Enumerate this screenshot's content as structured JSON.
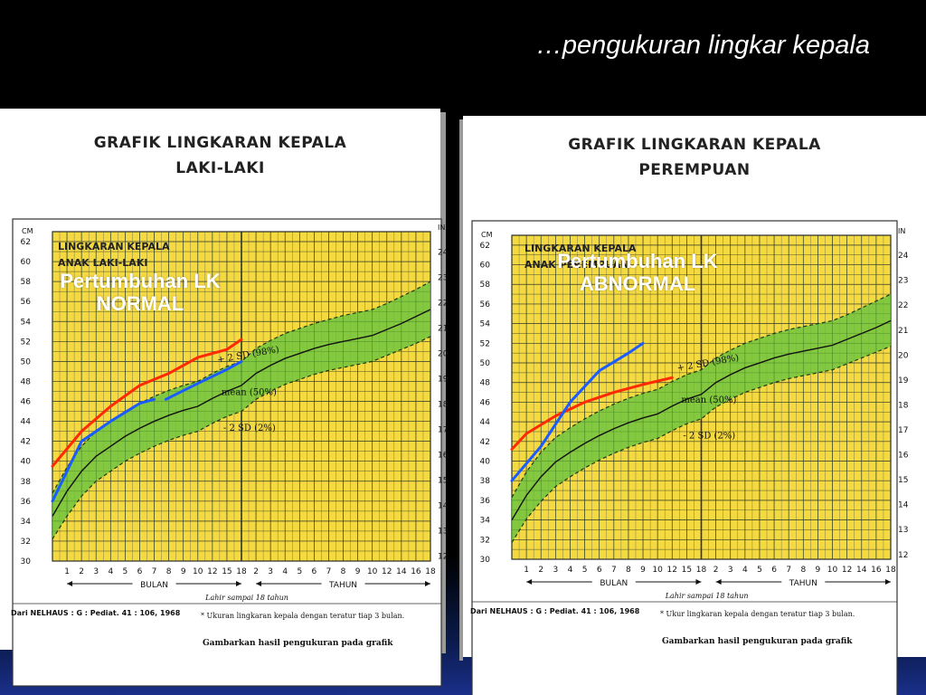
{
  "slide": {
    "title": "…pengukuran lingkar kepala"
  },
  "chart_data": [
    {
      "type": "line",
      "title": "GRAFIK LINGKARAN KEPALA",
      "subtitle": "LAKI-LAKI",
      "inner_title_1": "LINGKARAN KEPALA",
      "inner_title_2": "ANAK LAKI-LAKI",
      "overlay": "Pertumbuhan LK NORMAL",
      "overlay_lines": [
        "Pertumbuhan LK",
        "NORMAL"
      ],
      "left_axis_unit": "CM",
      "right_axis_unit": "IN",
      "cm_ticks": [
        30,
        32,
        34,
        36,
        38,
        40,
        42,
        44,
        46,
        48,
        50,
        52,
        54,
        56,
        58,
        60,
        62
      ],
      "in_ticks": [
        12,
        13,
        14,
        15,
        16,
        17,
        18,
        19,
        20,
        21,
        22,
        23,
        24
      ],
      "month_ticks": [
        "1",
        "2",
        "3",
        "4",
        "5",
        "6",
        "7",
        "8",
        "9",
        "10",
        "12",
        "15",
        "18"
      ],
      "year_ticks": [
        "2",
        "3",
        "4",
        "5",
        "6",
        "7",
        "8",
        "9",
        "10",
        "12",
        "14",
        "16",
        "18"
      ],
      "bulan_label": "BULAN",
      "tahun_label": "TAHUN",
      "range_note": "Lahir sampai 18 tahun",
      "source": "Dari NELHAUS : G : Pediat. 41 : 106, 1968",
      "footnote": "* Ukuran lingkaran kepala dengan teratur tiap 3 bulan.",
      "instruction": "Gambarkan hasil pengukuran pada grafik",
      "band_labels": {
        "upper": "+ 2 SD (98%)",
        "mean": "mean (50%)",
        "lower": "- 2 SD (2%)"
      },
      "x_ages": [
        "0",
        "1",
        "2",
        "3",
        "4",
        "5",
        "6",
        "7",
        "8",
        "9",
        "10",
        "12",
        "15",
        "18",
        "2",
        "3",
        "4",
        "5",
        "6",
        "7",
        "8",
        "9",
        "10",
        "12",
        "14",
        "16",
        "18"
      ],
      "mean": [
        34.5,
        37,
        39,
        40.5,
        41.5,
        42.5,
        43.3,
        44,
        44.6,
        45.1,
        45.5,
        46.3,
        47,
        47.6,
        48.8,
        49.6,
        50.3,
        50.8,
        51.3,
        51.7,
        52,
        52.3,
        52.6,
        53.2,
        53.8,
        54.5,
        55.2
      ],
      "upper": [
        36.8,
        39.4,
        41.5,
        43,
        44,
        45,
        45.8,
        46.5,
        47.1,
        47.6,
        48,
        48.8,
        49.5,
        50,
        51.3,
        52.1,
        52.8,
        53.3,
        53.8,
        54.2,
        54.6,
        54.9,
        55.2,
        55.8,
        56.5,
        57.2,
        58
      ],
      "lower": [
        32.2,
        34.5,
        36.5,
        38,
        39,
        40,
        40.8,
        41.5,
        42.1,
        42.6,
        43,
        43.8,
        44.5,
        45,
        46.2,
        47,
        47.7,
        48.2,
        48.7,
        49.1,
        49.4,
        49.7,
        50,
        50.6,
        51.2,
        51.8,
        52.5
      ],
      "series": [
        {
          "name": "red",
          "color": "#ff2a00",
          "points": [
            [
              0,
              39.5
            ],
            [
              2,
              43
            ],
            [
              4,
              45.5
            ],
            [
              6,
              47.6
            ],
            [
              8,
              48.8
            ],
            [
              10,
              50.4
            ],
            [
              12,
              51.2
            ],
            [
              13,
              52.2
            ]
          ]
        },
        {
          "name": "blue",
          "color": "#1a5cff",
          "points": [
            [
              0,
              36
            ],
            [
              1,
              39
            ],
            [
              2,
              42
            ],
            [
              4,
              44
            ],
            [
              6,
              45.8
            ],
            [
              7,
              46.2
            ]
          ],
          "points2": [
            [
              7.8,
              46.2
            ],
            [
              10,
              47.8
            ],
            [
              12,
              49.2
            ],
            [
              13,
              50
            ]
          ]
        }
      ]
    },
    {
      "type": "line",
      "title": "GRAFIK LINGKARAN KEPALA",
      "subtitle": "PEREMPUAN",
      "inner_title_1": "LINGKARAN KEPALA",
      "inner_title_2": "ANAK PEREMPUAN",
      "overlay": "Pertumbuhan LK ABNORMAL",
      "overlay_lines": [
        "Pertumbuhan LK",
        "ABNORMAL"
      ],
      "left_axis_unit": "CM",
      "right_axis_unit": "IN",
      "cm_ticks": [
        30,
        32,
        34,
        36,
        38,
        40,
        42,
        44,
        46,
        48,
        50,
        52,
        54,
        56,
        58,
        60,
        62
      ],
      "in_ticks": [
        12,
        13,
        14,
        15,
        16,
        17,
        18,
        19,
        20,
        21,
        22,
        23,
        24
      ],
      "month_ticks": [
        "1",
        "2",
        "3",
        "4",
        "5",
        "6",
        "7",
        "8",
        "9",
        "10",
        "12",
        "15",
        "18"
      ],
      "year_ticks": [
        "2",
        "3",
        "4",
        "5",
        "6",
        "7",
        "8",
        "9",
        "10",
        "12",
        "14",
        "16",
        "18"
      ],
      "bulan_label": "BULAN",
      "tahun_label": "TAHUN",
      "range_note": "Lahir sampai 18 tahun",
      "source": "Dari NELHAUS : G : Pediat. 41 : 106, 1968",
      "footnote": "* Ukur lingkaran kepala dengan teratur tiap 3 bulan.",
      "instruction": "Gambarkan hasil pengukuran pada grafik",
      "band_labels": {
        "upper": "+ 2 SD (98%)",
        "mean": "mean (50%)",
        "lower": "- 2 SD (2%)"
      },
      "x_ages": [
        "0",
        "1",
        "2",
        "3",
        "4",
        "5",
        "6",
        "7",
        "8",
        "9",
        "10",
        "12",
        "15",
        "18",
        "2",
        "3",
        "4",
        "5",
        "6",
        "7",
        "8",
        "9",
        "10",
        "12",
        "14",
        "16",
        "18"
      ],
      "mean": [
        34,
        36.5,
        38.4,
        39.9,
        40.9,
        41.8,
        42.6,
        43.3,
        43.9,
        44.4,
        44.8,
        45.6,
        46.3,
        46.8,
        48,
        48.8,
        49.5,
        50,
        50.5,
        50.9,
        51.2,
        51.5,
        51.8,
        52.4,
        53,
        53.6,
        54.3
      ],
      "upper": [
        36.3,
        38.9,
        40.9,
        42.4,
        43.4,
        44.3,
        45.1,
        45.8,
        46.4,
        46.9,
        47.3,
        48.1,
        48.8,
        49.3,
        50.5,
        51.3,
        52,
        52.5,
        53,
        53.4,
        53.7,
        54,
        54.3,
        54.9,
        55.6,
        56.3,
        57
      ],
      "lower": [
        31.7,
        34.1,
        35.9,
        37.4,
        38.4,
        39.3,
        40.1,
        40.8,
        41.4,
        41.9,
        42.3,
        43.1,
        43.8,
        44.3,
        45.5,
        46.3,
        47,
        47.5,
        48,
        48.4,
        48.7,
        49,
        49.3,
        49.9,
        50.5,
        51.1,
        51.7
      ],
      "series": [
        {
          "name": "red",
          "color": "#ff2a00",
          "points": [
            [
              0,
              41.2
            ],
            [
              1,
              42.8
            ],
            [
              3,
              44.6
            ],
            [
              5,
              46
            ],
            [
              7,
              47
            ],
            [
              9,
              47.8
            ],
            [
              11,
              48.5
            ]
          ]
        },
        {
          "name": "blue",
          "color": "#1a5cff",
          "points": [
            [
              0,
              38
            ],
            [
              2,
              41.5
            ],
            [
              4,
              46
            ],
            [
              6,
              49.2
            ],
            [
              8,
              51
            ],
            [
              9,
              52
            ]
          ]
        }
      ]
    }
  ]
}
